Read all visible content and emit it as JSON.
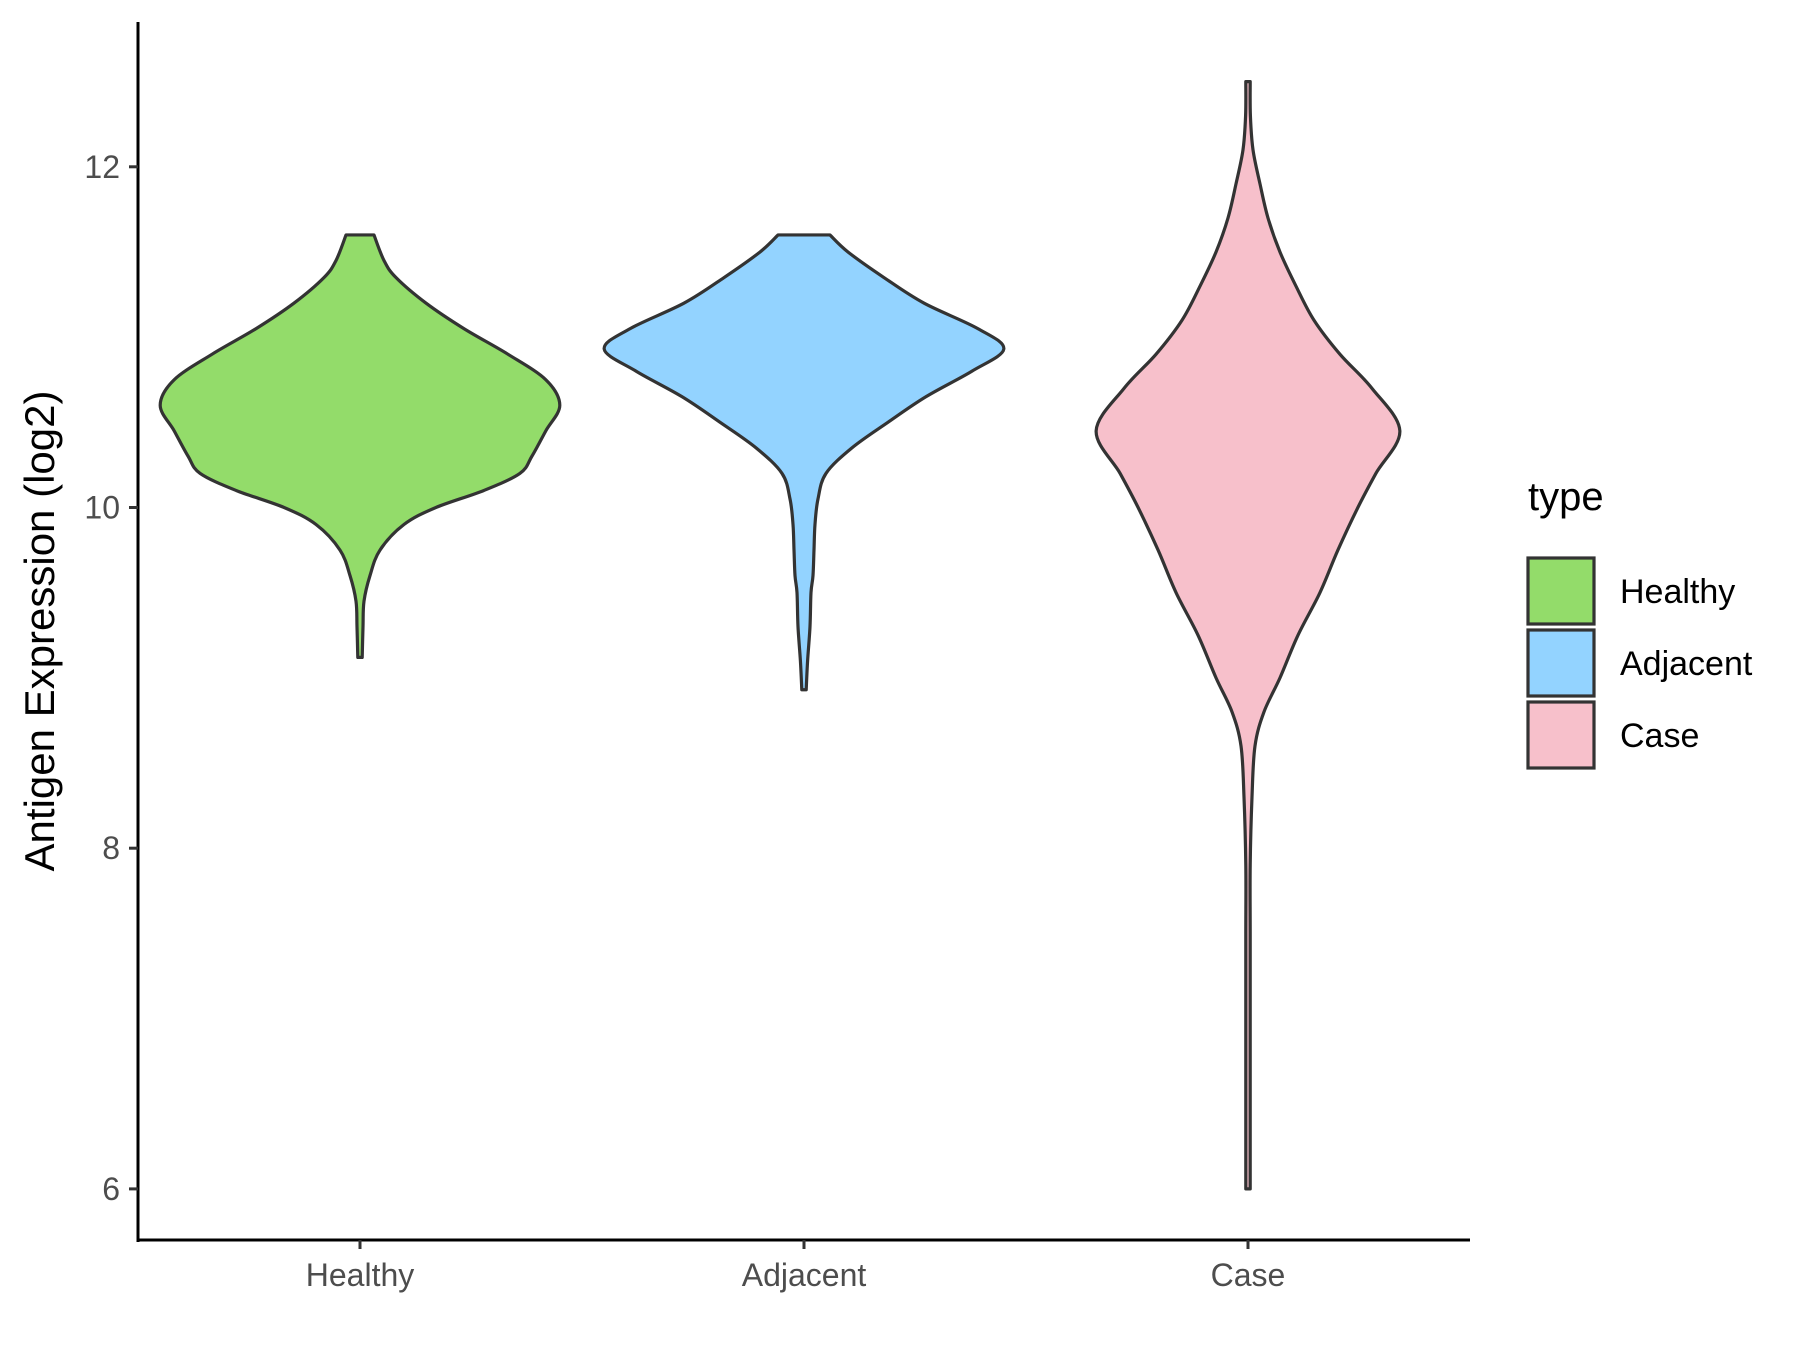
{
  "chart_data": {
    "type": "violin",
    "title": "",
    "xlabel": "",
    "ylabel": "Antigen Expression (log2)",
    "ylim": [
      5.7,
      12.85
    ],
    "yticks": [
      6,
      8,
      10,
      12
    ],
    "categories": [
      "Healthy",
      "Adjacent",
      "Case"
    ],
    "grid": false,
    "legend": {
      "title": "type",
      "placement": "right",
      "entries": [
        "Healthy",
        "Adjacent",
        "Case"
      ]
    },
    "series": [
      {
        "name": "Healthy",
        "color": "#93dc6a",
        "min": 9.12,
        "max": 11.6,
        "density_profile": [
          [
            9.12,
            0.01
          ],
          [
            9.3,
            0.015
          ],
          [
            9.45,
            0.02
          ],
          [
            9.6,
            0.05
          ],
          [
            9.75,
            0.1
          ],
          [
            9.9,
            0.22
          ],
          [
            10.0,
            0.38
          ],
          [
            10.1,
            0.62
          ],
          [
            10.2,
            0.8
          ],
          [
            10.3,
            0.86
          ],
          [
            10.45,
            0.93
          ],
          [
            10.6,
            1.0
          ],
          [
            10.75,
            0.93
          ],
          [
            10.9,
            0.74
          ],
          [
            11.05,
            0.52
          ],
          [
            11.2,
            0.33
          ],
          [
            11.35,
            0.18
          ],
          [
            11.45,
            0.12
          ],
          [
            11.6,
            0.07
          ]
        ]
      },
      {
        "name": "Adjacent",
        "color": "#93d3ff",
        "min": 8.93,
        "max": 11.6,
        "density_profile": [
          [
            8.93,
            0.01
          ],
          [
            9.1,
            0.018
          ],
          [
            9.3,
            0.03
          ],
          [
            9.5,
            0.035
          ],
          [
            9.6,
            0.045
          ],
          [
            9.75,
            0.05
          ],
          [
            9.9,
            0.055
          ],
          [
            10.05,
            0.07
          ],
          [
            10.2,
            0.11
          ],
          [
            10.35,
            0.24
          ],
          [
            10.5,
            0.42
          ],
          [
            10.65,
            0.61
          ],
          [
            10.8,
            0.84
          ],
          [
            10.93,
            1.0
          ],
          [
            11.05,
            0.87
          ],
          [
            11.2,
            0.6
          ],
          [
            11.35,
            0.4
          ],
          [
            11.5,
            0.22
          ],
          [
            11.6,
            0.13
          ]
        ]
      },
      {
        "name": "Case",
        "color": "#f7c0cb",
        "min": 6.0,
        "max": 12.5,
        "density_profile": [
          [
            6.0,
            0.005
          ],
          [
            6.5,
            0.005
          ],
          [
            7.0,
            0.005
          ],
          [
            7.5,
            0.006
          ],
          [
            7.9,
            0.008
          ],
          [
            8.3,
            0.02
          ],
          [
            8.6,
            0.035
          ],
          [
            8.8,
            0.08
          ],
          [
            9.0,
            0.16
          ],
          [
            9.25,
            0.25
          ],
          [
            9.5,
            0.36
          ],
          [
            9.75,
            0.45
          ],
          [
            10.0,
            0.55
          ],
          [
            10.2,
            0.64
          ],
          [
            10.45,
            0.76
          ],
          [
            10.7,
            0.62
          ],
          [
            10.9,
            0.46
          ],
          [
            11.1,
            0.33
          ],
          [
            11.3,
            0.24
          ],
          [
            11.5,
            0.16
          ],
          [
            11.7,
            0.1
          ],
          [
            11.9,
            0.06
          ],
          [
            12.1,
            0.025
          ],
          [
            12.3,
            0.012
          ],
          [
            12.5,
            0.004
          ]
        ]
      }
    ]
  }
}
